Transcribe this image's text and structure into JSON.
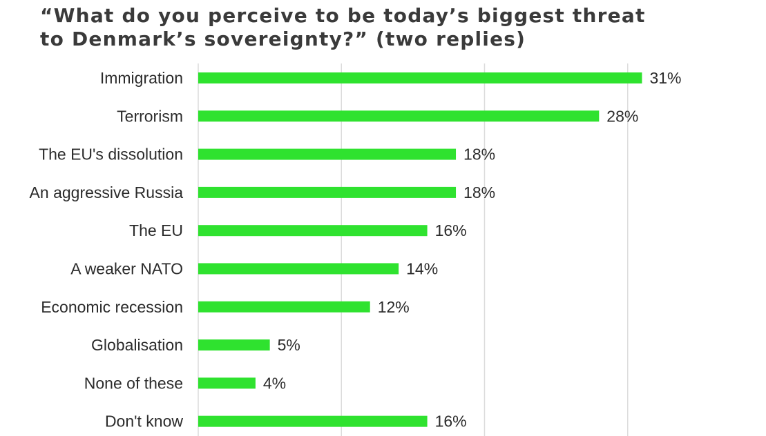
{
  "chart_data": {
    "type": "bar",
    "orientation": "horizontal",
    "title_lines": [
      "“What do you perceive to be today’s biggest threat",
      "to Denmark’s sovereignty?” (two replies)"
    ],
    "categories": [
      "Immigration",
      "Terrorism",
      "The EU's dissolution",
      "An aggressive Russia",
      "The EU",
      "A weaker NATO",
      "Economic recession",
      "Globalisation",
      "None of these",
      "Don't know"
    ],
    "values": [
      31,
      28,
      18,
      18,
      16,
      14,
      12,
      5,
      4,
      16
    ],
    "value_labels": [
      "31%",
      "28%",
      "18%",
      "18%",
      "16%",
      "14%",
      "12%",
      "5%",
      "4%",
      "16%"
    ],
    "xlim": [
      0,
      40
    ],
    "grid_values": [
      10,
      20,
      30
    ],
    "grid": true,
    "xlabel": "",
    "ylabel": "",
    "bar_color": "#2fe22f",
    "grid_color": "#dcdcdc"
  }
}
